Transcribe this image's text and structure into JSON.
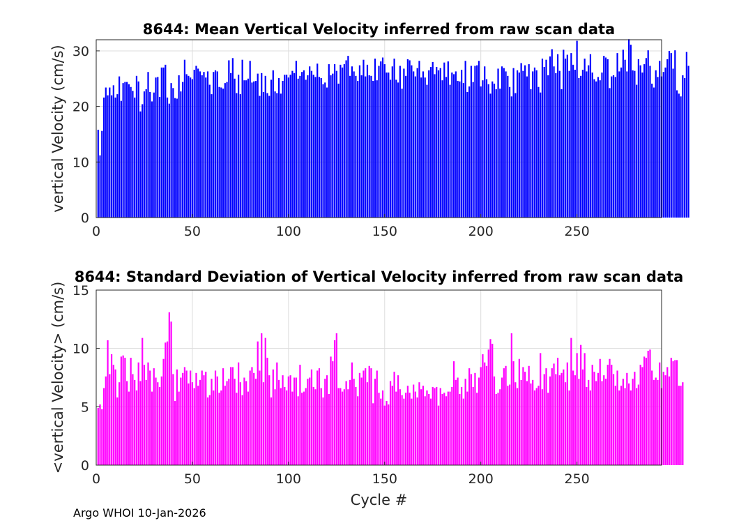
{
  "footer": "Argo WHOI 10-Jan-2026",
  "chart_data": [
    {
      "type": "bar",
      "title": "8644: Mean Vertical Velocity inferred from raw scan data",
      "xlabel": "",
      "ylabel": "vertical Velocity (cm/s)",
      "xlim": [
        0,
        294
      ],
      "ylim": [
        0,
        32
      ],
      "xticks": [
        0,
        50,
        100,
        150,
        200,
        250
      ],
      "yticks": [
        0,
        10,
        20,
        30
      ],
      "grid": true,
      "color": "#0000ff",
      "x_start": 1,
      "values": [
        15.8,
        11.2,
        15.6,
        21.6,
        23.4,
        22,
        23.4,
        22,
        23.8,
        21.6,
        22.2,
        25.4,
        21,
        24.2,
        24.4,
        24.4,
        24,
        23.5,
        22.8,
        21.6,
        25.5,
        24.5,
        19.1,
        20.4,
        22.7,
        23.1,
        26.2,
        22.6,
        20.9,
        22.5,
        25.2,
        25.3,
        21.7,
        27,
        27,
        27.5,
        21.6,
        20.5,
        24.2,
        23.3,
        21.5,
        21.4,
        25.6,
        22.7,
        24.4,
        28.4,
        25.8,
        25.5,
        25.2,
        24.9,
        26.6,
        27.3,
        26.8,
        26.3,
        25.6,
        26.2,
        25.2,
        26.3,
        23.9,
        22.2,
        26.2,
        26.5,
        26.3,
        23.5,
        23.4,
        23.2,
        24.2,
        24.4,
        28.3,
        26,
        28.7,
        25,
        22.4,
        25.7,
        22.2,
        28.4,
        24.7,
        24.7,
        25,
        28.2,
        24.3,
        24.5,
        24.6,
        25.9,
        21.9,
        26,
        22.6,
        25.5,
        22.4,
        21.9,
        24.8,
        26.5,
        22.7,
        22.4,
        25.1,
        22.3,
        24.6,
        25.7,
        25.7,
        25.2,
        25.7,
        26.4,
        26,
        28.2,
        25,
        25.5,
        26.2,
        26.5,
        24.8,
        25.6,
        27.2,
        26.4,
        25.7,
        25.3,
        27.7,
        25.3,
        25.1,
        24,
        24.3,
        23.4,
        27.6,
        25.6,
        25.9,
        27.6,
        26.4,
        24.1,
        27.5,
        27,
        27.6,
        28.3,
        29.1,
        25.5,
        27.2,
        26.3,
        25.5,
        24.6,
        27.4,
        25.6,
        28.4,
        25.4,
        27.5,
        25.6,
        25.5,
        24.6,
        28.6,
        24.7,
        27.3,
        28.1,
        28.8,
        27.6,
        26.1,
        26.1,
        24.8,
        27.2,
        28.6,
        24.8,
        24.3,
        27.3,
        23.2,
        26.8,
        25.5,
        28.5,
        28.3,
        27.4,
        26.3,
        25.4,
        26.9,
        28.2,
        25.2,
        26.3,
        25.2,
        23.9,
        26.5,
        27.1,
        28,
        25.8,
        27.1,
        26.5,
        26.9,
        24.7,
        27.9,
        25.3,
        28.1,
        23.9,
        26.1,
        25.8,
        26.3,
        24.6,
        24.5,
        26.6,
        24.2,
        28.2,
        22.6,
        23.6,
        27.3,
        24.4,
        27.3,
        27.4,
        28.2,
        23.6,
        24.7,
        27.2,
        24.9,
        24,
        22.3,
        24.5,
        24.1,
        23.1,
        26.8,
        23.2,
        27.2,
        26.9,
        26.3,
        25.5,
        23.5,
        21.8,
        26.9,
        22.4,
        26.5,
        26.1,
        27.8,
        26.4,
        27.4,
        25.4,
        27.6,
        23.1,
        26.3,
        27,
        26.5,
        23.5,
        22.5,
        28.6,
        27.1,
        28.4,
        25.6,
        29,
        30.3,
        27.2,
        26,
        29.4,
        26.4,
        23.1,
        30.2,
        28.6,
        29.3,
        26.4,
        29.6,
        27.5,
        26.6,
        31.8,
        25.1,
        25.5,
        26.6,
        28.6,
        26.3,
        27.4,
        29.4,
        26.1,
        24.9,
        24.5,
        25.3,
        24.7,
        26.1,
        29.1,
        28.8,
        28.5,
        23.3,
        25.4,
        25.6,
        25.3,
        29.6,
        26.3,
        27,
        30.2,
        28.4,
        26.3,
        32.1,
        31.1,
        26.5,
        26.4,
        23.9,
        28.5,
        27.4,
        26.1,
        27.6,
        28.7,
        30.1,
        27.3,
        24.1,
        23.4,
        26.5,
        25.3,
        28.2,
        25.4,
        26.2,
        27,
        28.5,
        30,
        29.6,
        26.8,
        30.1,
        22.9,
        22.3,
        21.8,
        25.6,
        25.1,
        29.8,
        27.3
      ]
    },
    {
      "type": "bar",
      "title": "8644: Standard Deviation of Vertical Velocity inferred from raw scan data",
      "xlabel": "Cycle #",
      "ylabel": "<vertical Velocity> (cm/s)",
      "xlim": [
        0,
        294
      ],
      "ylim": [
        0,
        15
      ],
      "xticks": [
        0,
        50,
        100,
        150,
        200,
        250
      ],
      "yticks": [
        0,
        5,
        10,
        15
      ],
      "grid": true,
      "color": "#ff00ff",
      "x_start": 1,
      "values": [
        4.9,
        5.2,
        4.8,
        6.6,
        7.6,
        10.7,
        7.8,
        9.5,
        8.6,
        8.2,
        5.8,
        7.1,
        9.3,
        9.4,
        9.2,
        7.2,
        6.3,
        9.2,
        7.8,
        7.3,
        6.4,
        8.8,
        7.2,
        10.9,
        8.6,
        7.3,
        8.8,
        8.1,
        6.3,
        8.3,
        7.5,
        7.1,
        6.7,
        7.6,
        9.1,
        10.5,
        10.6,
        13.1,
        12.3,
        7.8,
        5.5,
        8.2,
        6.3,
        7.5,
        7.9,
        8.4,
        8.1,
        7,
        8.1,
        7.1,
        6.6,
        7.9,
        6.8,
        7.3,
        8.1,
        7.7,
        8,
        5.8,
        6,
        7.4,
        6.4,
        8.1,
        7.6,
        6.2,
        6.4,
        8.3,
        6.8,
        7.2,
        7.4,
        8.4,
        8.4,
        7.4,
        6.2,
        8.8,
        7.1,
        6,
        7.5,
        7.2,
        6.3,
        8.1,
        8.4,
        7.9,
        7.4,
        10.6,
        8.1,
        11.3,
        7.1,
        10.9,
        9.2,
        7.7,
        5.8,
        8.2,
        6.5,
        8.8,
        7.3,
        6.6,
        7.7,
        6.7,
        6.4,
        7.6,
        7.7,
        6.3,
        7.5,
        7.5,
        5.9,
        8.6,
        6.2,
        6.3,
        6.6,
        7.4,
        7.5,
        8.2,
        6.7,
        6.5,
        8.1,
        8.3,
        6.6,
        5.8,
        7.4,
        7.7,
        6.1,
        9.3,
        8.9,
        10.7,
        11.3,
        6.6,
        6.6,
        6.3,
        6.5,
        7.2,
        6.5,
        7.3,
        8.8,
        7.4,
        6.7,
        5.9,
        7.9,
        7.5,
        8.1,
        8.3,
        7.1,
        8.5,
        8.3,
        5.3,
        7.4,
        8.1,
        6.2,
        5.7,
        6.4,
        5.1,
        5.5,
        5.2,
        7.2,
        6.8,
        8,
        6.3,
        7.7,
        6.5,
        6,
        5.7,
        6.2,
        6.8,
        6.2,
        5.7,
        6.9,
        6.3,
        5.8,
        7.1,
        6.5,
        6.8,
        5.9,
        6.4,
        6.1,
        5.7,
        6.7,
        6.6,
        6.7,
        5.1,
        6.6,
        6.1,
        6.2,
        5.9,
        6.3,
        6.3,
        6.7,
        8.9,
        7.3,
        7.5,
        6.1,
        6.7,
        5.7,
        7.4,
        6.3,
        8.3,
        7.8,
        6.7,
        7.9,
        6.2,
        7.5,
        8.4,
        9.5,
        8.8,
        8.5,
        9.9,
        10.8,
        10.4,
        7.6,
        6.1,
        6.2,
        6.5,
        7.5,
        8.3,
        8.5,
        6.8,
        6.9,
        11.3,
        8.9,
        7.1,
        6.6,
        9.1,
        7.3,
        8.4,
        8,
        7.2,
        8.5,
        7,
        7.3,
        6.4,
        6.6,
        6.8,
        9.6,
        6.5,
        7.8,
        8.3,
        6.2,
        7.6,
        8.3,
        8.7,
        7.8,
        9.2,
        7.7,
        7.9,
        8.2,
        7.1,
        8.8,
        6.4,
        10.9,
        8.1,
        7.7,
        9.6,
        7.4,
        10.3,
        8.2,
        9.6,
        6.7,
        7.3,
        6.4,
        8.6,
        8,
        7.2,
        7.9,
        9.1,
        7.2,
        7.7,
        7.4,
        8.6,
        9.1,
        8.6,
        7.8,
        6.8,
        8.1,
        6.4,
        6.8,
        7.4,
        6.6,
        7.9,
        7,
        6.4,
        7.4,
        8,
        6.6,
        6.9,
        8.6,
        8.4,
        9.3,
        9.2,
        9.8,
        9.9,
        8.1,
        7.3,
        7.5,
        7.3,
        8.8,
        6.6,
        8,
        7.7,
        8.4,
        7.6,
        9.2,
        8.9,
        9,
        9,
        6.8,
        6.8,
        7.1
      ]
    }
  ]
}
